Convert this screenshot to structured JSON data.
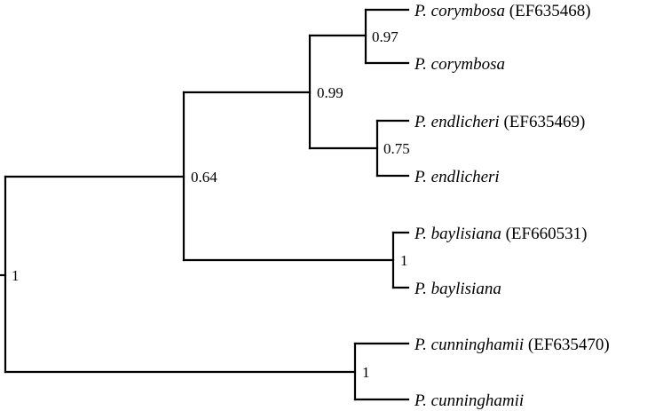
{
  "tree": {
    "taxa": [
      {
        "species": "P. corymbosa",
        "accession": "(EF635468)"
      },
      {
        "species": "P. corymbosa",
        "accession": ""
      },
      {
        "species": "P. endlicheri",
        "accession": "(EF635469)"
      },
      {
        "species": "P. endlicheri",
        "accession": ""
      },
      {
        "species": "P. baylisiana",
        "accession": "(EF660531)"
      },
      {
        "species": "P. baylisiana",
        "accession": ""
      },
      {
        "species": "P. cunninghamii",
        "accession": "(EF635470)"
      },
      {
        "species": "P. cunninghamii",
        "accession": ""
      }
    ],
    "support": {
      "root": "1",
      "ingroup": "0.64",
      "corymbosa_endlicheri": "0.99",
      "corymbosa": "0.97",
      "endlicheri": "0.75",
      "baylisiana": "1",
      "cunninghamii": "1"
    },
    "line_color": "#000000"
  }
}
